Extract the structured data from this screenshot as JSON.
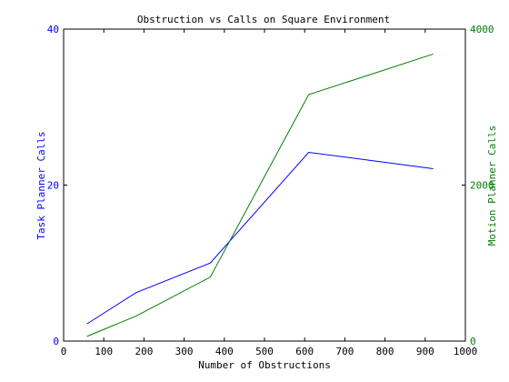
{
  "chart_data": {
    "type": "line",
    "title": "Obstruction vs Calls on Square Environment",
    "xlabel": "Number of Obstructions",
    "ylabel_left": "Task Planner Calls",
    "ylabel_right": "Motion Planner Calls",
    "xlim": [
      0,
      1000
    ],
    "ylim_left": [
      0,
      40
    ],
    "ylim_right": [
      0,
      4000
    ],
    "x_ticks": [
      "0",
      "100",
      "200",
      "300",
      "400",
      "500",
      "600",
      "700",
      "800",
      "900",
      "1000"
    ],
    "y_left_ticks": [
      "0",
      "20",
      "40"
    ],
    "y_right_ticks": [
      "0",
      "2000",
      "4000"
    ],
    "grid": false,
    "series": [
      {
        "axis": "left",
        "color": "#0000ff",
        "x": [
          58,
          180,
          365,
          610,
          920
        ],
        "y": [
          2.2,
          6.2,
          10.0,
          24.2,
          22.1
        ]
      },
      {
        "axis": "right",
        "color": "#007f00",
        "x": [
          58,
          180,
          365,
          610,
          920
        ],
        "y": [
          60,
          320,
          820,
          3160,
          3680
        ]
      }
    ]
  }
}
